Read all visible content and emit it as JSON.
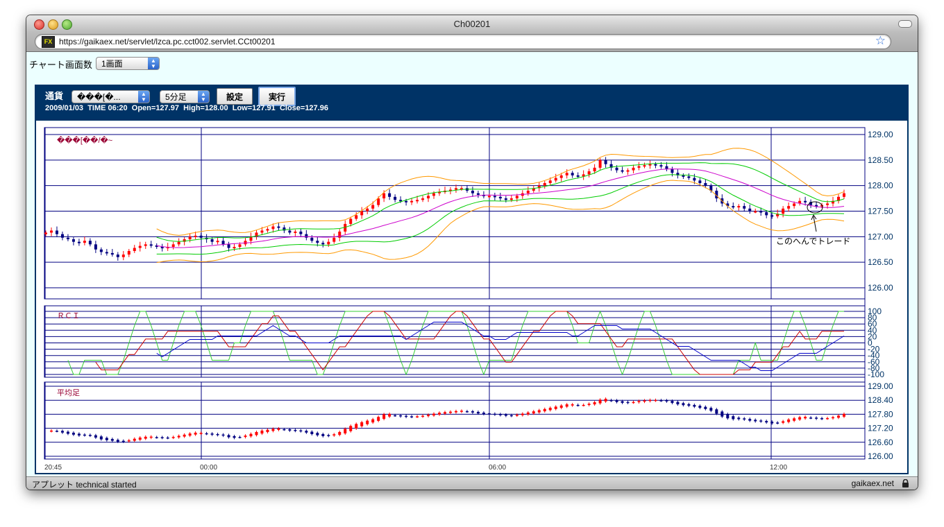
{
  "window": {
    "title": "Ch00201"
  },
  "browser": {
    "url": "https://gaikaex.net/servlet/lzca.pc.cct002.servlet.CCt00201",
    "site_icon_label": "FX"
  },
  "page": {
    "chart_count_label": "チャート画面数",
    "chart_count_value": "1画面"
  },
  "toolbar": {
    "currency_label": "通貨",
    "currency_value": "���[�...",
    "timeframe_value": "5分足",
    "settings_button": "設定",
    "run_button": "実行"
  },
  "ohlc_info": {
    "date": "2009/01/03",
    "time": "TIME 06:20",
    "open": "Open=127.97",
    "high": "High=128.00",
    "low": "Low=127.91",
    "close": "Close=127.96"
  },
  "annotation": {
    "text": "このへんでトレード"
  },
  "status": {
    "left": "アプレット technical started",
    "right": "gaikaex.net"
  },
  "colors": {
    "panel": "#003366",
    "up_candle": "#ff0000",
    "down_candle": "#000080",
    "grid": "#000080",
    "ma_magenta": "#cc00cc",
    "band_green": "#00cc00",
    "band_orange": "#ff9900",
    "rci_short": "#33cc33",
    "rci_mid": "#cc0000",
    "rci_long": "#0000cc",
    "panel_title": "#990033"
  },
  "chart_data": [
    {
      "type": "line",
      "title": "���[��/�~",
      "subtype": "candlestick with bollinger bands",
      "ylim": [
        126.0,
        129.0
      ],
      "yticks": [
        "129.00",
        "128.50",
        "128.00",
        "127.50",
        "127.00",
        "126.50",
        "126.00"
      ],
      "x_ticks": [
        "20:45",
        "00:00",
        "06:00",
        "12:00"
      ],
      "series": [
        {
          "values": [
            127.08,
            127.12,
            127.05,
            126.98,
            126.95,
            126.9,
            126.88,
            126.92,
            126.85,
            126.75,
            126.7,
            126.68,
            126.65,
            126.6,
            126.65,
            126.72,
            126.78,
            126.82,
            126.85,
            126.83,
            126.8,
            126.78,
            126.8,
            126.85,
            126.9,
            126.95,
            127.0,
            127.02,
            126.98,
            126.95,
            126.9,
            126.92,
            126.85,
            126.78,
            126.8,
            126.85,
            126.92,
            127.0,
            127.08,
            127.12,
            127.15,
            127.2,
            127.18,
            127.12,
            127.08,
            127.1,
            127.05,
            126.98,
            126.92,
            126.88,
            126.85,
            126.9,
            126.98,
            127.1,
            127.25,
            127.35,
            127.42,
            127.5,
            127.55,
            127.62,
            127.75,
            127.85,
            127.78,
            127.72,
            127.7,
            127.68,
            127.7,
            127.72,
            127.75,
            127.8,
            127.85,
            127.88,
            127.9,
            127.92,
            127.95,
            127.95,
            127.9,
            127.85,
            127.82,
            127.8,
            127.8,
            127.78,
            127.75,
            127.72,
            127.75,
            127.8,
            127.85,
            127.9,
            127.95,
            128.0,
            128.05,
            128.1,
            128.15,
            128.2,
            128.25,
            128.2,
            128.18,
            128.22,
            128.28,
            128.35,
            128.5,
            128.42,
            128.35,
            128.3,
            128.28,
            128.3,
            128.35,
            128.38,
            128.4,
            128.42,
            128.4,
            128.38,
            128.32,
            128.25,
            128.2,
            128.18,
            128.15,
            128.1,
            128.05,
            128.0,
            127.9,
            127.75,
            127.65,
            127.6,
            127.58,
            127.6,
            127.55,
            127.5,
            127.5,
            127.48,
            127.42,
            127.4,
            127.45,
            127.55,
            127.6,
            127.65,
            127.7,
            127.68,
            127.62,
            127.6,
            127.62,
            127.65,
            127.7,
            127.78,
            127.85
          ]
        }
      ],
      "annotation": "このへんでトレード"
    },
    {
      "type": "line",
      "title": "ＲＣＩ",
      "ylim": [
        -100,
        100
      ],
      "yticks": [
        "100",
        "80",
        "60",
        "40",
        "20",
        "0",
        "-20",
        "-40",
        "-60",
        "-80",
        "-100"
      ]
    },
    {
      "type": "line",
      "title": "平均足",
      "subtype": "heikin-ashi",
      "ylim": [
        126.0,
        129.0
      ],
      "yticks": [
        "129.00",
        "128.40",
        "127.80",
        "127.20",
        "126.60",
        "126.00"
      ]
    }
  ]
}
